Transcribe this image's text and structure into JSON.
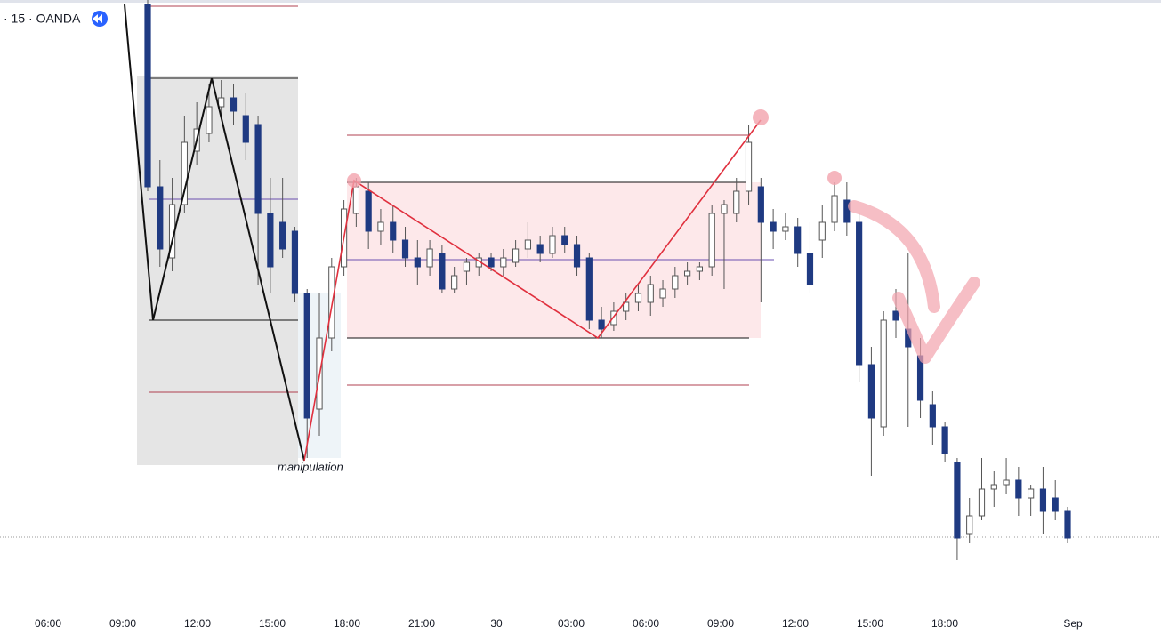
{
  "header": {
    "title": "· 15 · OANDA"
  },
  "annotation": "manipulation",
  "chart_data": {
    "type": "candlestick",
    "ylim": [
      0,
      70
    ],
    "up_color": "#ffffff",
    "down_color": "#1f3a82",
    "wick_color": "#555555",
    "xticks": [
      "06:00",
      "09:00",
      "12:00",
      "15:00",
      "18:00",
      "21:00",
      "30",
      "03:00",
      "06:00",
      "09:00",
      "12:00",
      "15:00",
      "18:00",
      "Sep"
    ],
    "open": [
      69.5,
      49,
      41,
      47,
      53,
      55,
      58,
      59,
      57,
      56,
      46,
      45,
      44,
      37,
      24,
      32,
      40,
      46,
      48.5,
      44,
      45,
      43,
      41,
      40,
      41.5,
      37.5,
      39.5,
      40,
      41,
      40,
      40.5,
      42,
      42.5,
      41.5,
      43.5,
      42.5,
      41,
      34,
      33.5,
      35,
      36,
      36,
      36.5,
      37.5,
      39,
      39.5,
      40,
      46,
      46,
      48.5,
      49,
      45,
      44,
      44.5,
      41.5,
      43,
      45,
      47.5,
      45,
      29,
      22,
      35,
      33,
      30,
      24.5,
      22,
      18,
      10,
      12,
      15,
      15.5,
      16,
      14,
      15,
      14,
      12.5
    ],
    "high": [
      70,
      52,
      50,
      57,
      58.5,
      60.5,
      61,
      60.5,
      59.5,
      57,
      50,
      50,
      44.5,
      37.5,
      37,
      41,
      47.5,
      50,
      49.5,
      46.5,
      47,
      44.5,
      43,
      43,
      42.5,
      40,
      41,
      41.5,
      41.5,
      42,
      43,
      45,
      43.5,
      44.5,
      44.5,
      43.5,
      41.5,
      35.5,
      36,
      37,
      38,
      39,
      38.5,
      40,
      40.5,
      40.5,
      47,
      47.5,
      50,
      56,
      50,
      46.5,
      46,
      45.5,
      45,
      47,
      49.5,
      49.5,
      46,
      31,
      35,
      37.5,
      41.5,
      32,
      26,
      22.5,
      18.5,
      14,
      18.5,
      17,
      18.5,
      17.5,
      15.5,
      17.5,
      16,
      13
    ],
    "low": [
      48.5,
      40,
      39.5,
      46,
      51.5,
      54,
      57,
      56,
      52,
      38,
      37,
      41,
      36,
      18.5,
      21,
      30.5,
      39,
      44.5,
      42,
      42.5,
      41.5,
      40,
      38,
      39,
      37,
      37,
      38,
      39,
      39.5,
      39,
      40,
      41,
      40.5,
      41,
      41.5,
      39,
      33,
      32,
      32.8,
      34,
      35,
      34.5,
      35.5,
      36.5,
      38,
      38.5,
      39,
      37.5,
      45,
      47,
      36,
      42,
      43,
      40,
      37,
      41,
      44,
      43.5,
      27,
      16.5,
      21,
      32,
      22,
      23,
      20,
      18,
      7,
      9,
      11.5,
      13,
      14.5,
      12,
      12,
      10,
      11.5,
      9
    ],
    "close": [
      49,
      42,
      47,
      54,
      55.5,
      58,
      59,
      57.5,
      54,
      46,
      40,
      42,
      37,
      23,
      32,
      40,
      46.5,
      49,
      44,
      45,
      43,
      41,
      40,
      42,
      37.5,
      39,
      40.5,
      41,
      40,
      41,
      42,
      43,
      41.5,
      43.5,
      42.5,
      40,
      34,
      33,
      35,
      36,
      37,
      38,
      37.5,
      39,
      39.5,
      40,
      46,
      47,
      48.5,
      54,
      45,
      44,
      44.5,
      41.5,
      38,
      45,
      48,
      45,
      29,
      23,
      34,
      34,
      31,
      25,
      22,
      19,
      9.5,
      12,
      15,
      15.5,
      16,
      14,
      15,
      12.5,
      12.5,
      9.5
    ]
  }
}
